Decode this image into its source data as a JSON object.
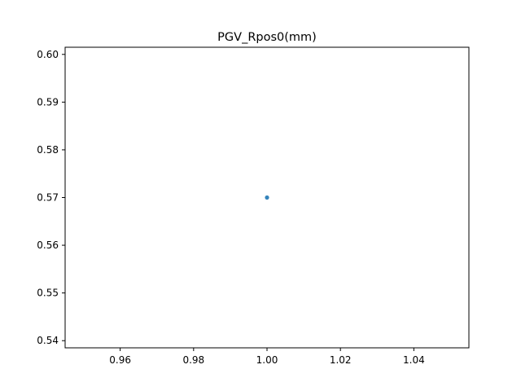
{
  "chart_data": {
    "type": "scatter",
    "title": "PGV_Rpos0(mm)",
    "xlabel": "",
    "ylabel": "",
    "x": [
      1.0
    ],
    "y": [
      0.57
    ],
    "xlim": [
      0.945,
      1.055
    ],
    "ylim": [
      0.5385,
      0.6015
    ],
    "xticks": [
      0.96,
      0.98,
      1.0,
      1.02,
      1.04
    ],
    "xtick_labels": [
      "0.96",
      "0.98",
      "1.00",
      "1.02",
      "1.04"
    ],
    "yticks": [
      0.54,
      0.55,
      0.56,
      0.57,
      0.58,
      0.59,
      0.6
    ],
    "ytick_labels": [
      "0.54",
      "0.55",
      "0.56",
      "0.57",
      "0.58",
      "0.59",
      "0.60"
    ],
    "grid": false,
    "legend": "none",
    "colors": {
      "marker": "#1f77b4",
      "axes": "#000000",
      "background": "#ffffff"
    }
  }
}
